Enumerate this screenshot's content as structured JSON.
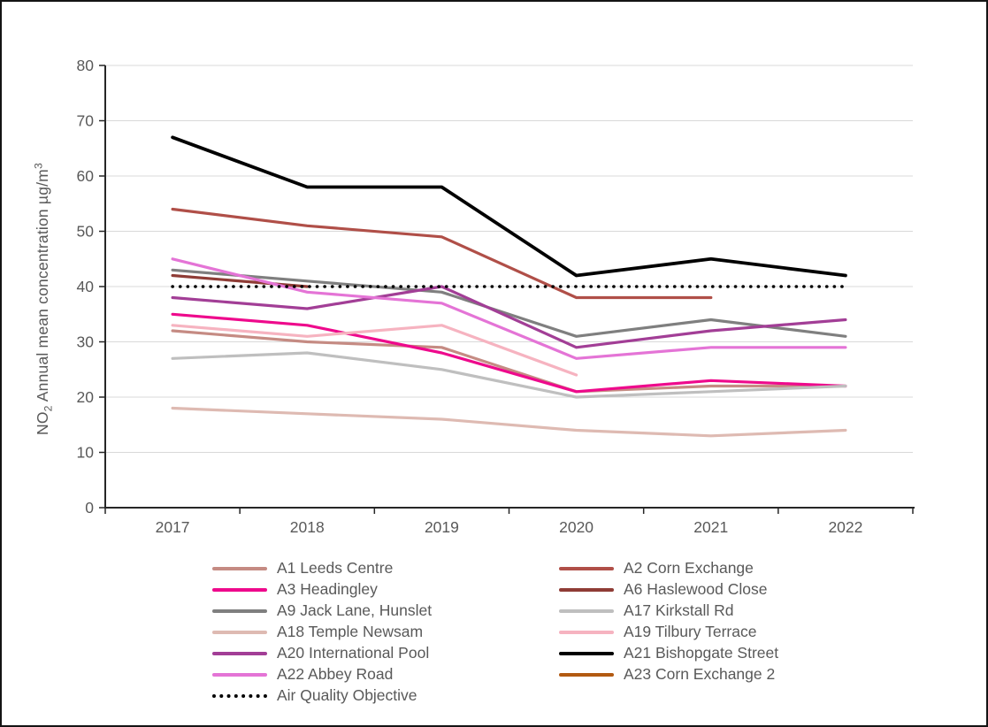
{
  "y_axis": {
    "title_prefix": "NO",
    "title_sub": "2",
    "title_mid": " Annual mean concentration µg/m",
    "title_sup": "3",
    "ticks": [
      0,
      10,
      20,
      30,
      40,
      50,
      60,
      70,
      80
    ],
    "min": 0,
    "max": 80
  },
  "x_axis": {
    "categories": [
      "2017",
      "2018",
      "2019",
      "2020",
      "2021",
      "2022"
    ]
  },
  "colors": {
    "grid": "#d9d9d9",
    "axis": "#262626",
    "tick_label": "#595959",
    "legend_text": "#595959"
  },
  "chart_data": {
    "type": "line",
    "title": "",
    "xlabel": "",
    "ylabel": "NO2 Annual mean concentration µg/m3",
    "ylim": [
      0,
      80
    ],
    "grid": "horizontal",
    "legend_position": "bottom",
    "categories": [
      "2017",
      "2018",
      "2019",
      "2020",
      "2021",
      "2022"
    ],
    "series": [
      {
        "name": "A1 Leeds Centre",
        "color": "#c58b83",
        "values": [
          32,
          30,
          29,
          21,
          22,
          22
        ]
      },
      {
        "name": "A2 Corn Exchange",
        "color": "#b04f48",
        "values": [
          54,
          51,
          49,
          38,
          38,
          null
        ]
      },
      {
        "name": "A3 Headingley",
        "color": "#ee0a8c",
        "values": [
          35,
          33,
          28,
          21,
          23,
          22
        ]
      },
      {
        "name": "A6 Haslewood Close",
        "color": "#8f3c36",
        "values": [
          42,
          40,
          null,
          null,
          null,
          null
        ]
      },
      {
        "name": "A9 Jack Lane, Hunslet",
        "color": "#7f7f7f",
        "values": [
          43,
          41,
          39,
          31,
          34,
          31
        ]
      },
      {
        "name": "A17 Kirkstall Rd",
        "color": "#bfbfbf",
        "values": [
          27,
          28,
          25,
          20,
          21,
          22
        ]
      },
      {
        "name": "A18 Temple Newsam",
        "color": "#debab2",
        "values": [
          18,
          17,
          16,
          14,
          13,
          14
        ]
      },
      {
        "name": "A19 Tilbury Terrace",
        "color": "#f6b3c0",
        "values": [
          33,
          31,
          33,
          24,
          null,
          null
        ]
      },
      {
        "name": "A20 International Pool",
        "color": "#a23e96",
        "values": [
          38,
          36,
          40,
          29,
          32,
          34
        ]
      },
      {
        "name": "A21 Bishopgate Street",
        "color": "#000000",
        "values": [
          67,
          58,
          58,
          42,
          45,
          42
        ],
        "width": 3.8
      },
      {
        "name": "A22 Abbey Road",
        "color": "#e474d6",
        "values": [
          45,
          39,
          37,
          27,
          29,
          29
        ]
      },
      {
        "name": "A23 Corn Exchange 2",
        "color": "#b25a11",
        "values": [
          null,
          null,
          null,
          null,
          null,
          null
        ]
      },
      {
        "name": "Air Quality Objective",
        "color": "#000000",
        "values": [
          40,
          40,
          40,
          40,
          40,
          40
        ],
        "style": "dotted"
      }
    ]
  }
}
